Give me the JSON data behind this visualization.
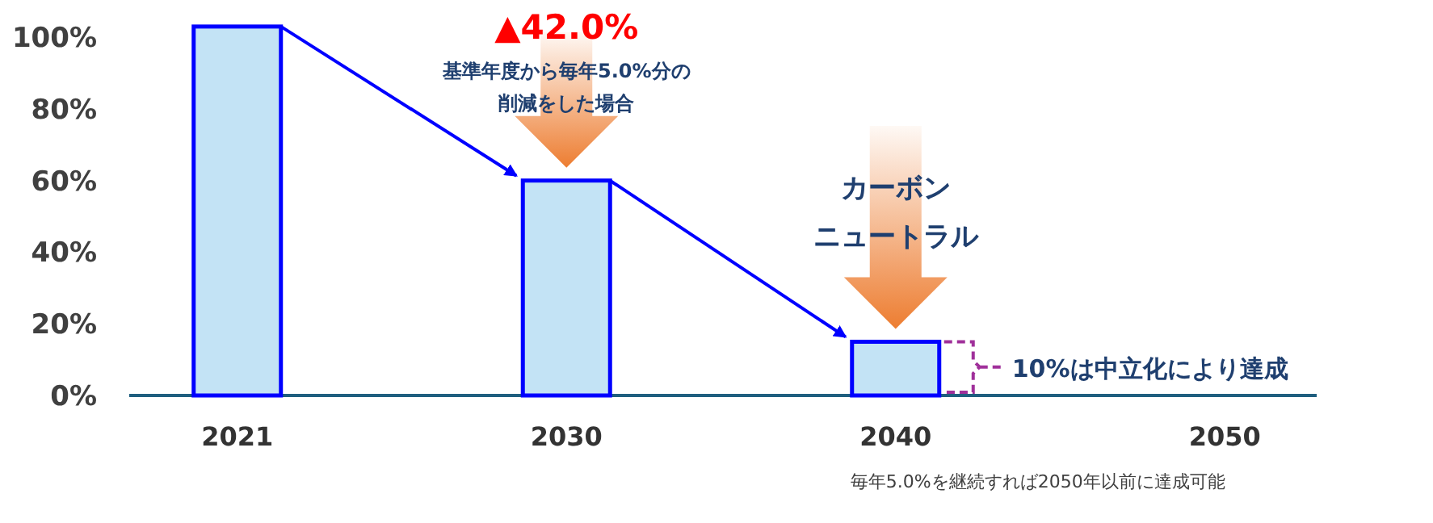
{
  "chart_data": {
    "type": "bar",
    "categories": [
      "2021",
      "2030",
      "2040",
      "2050"
    ],
    "values": [
      103,
      60,
      15,
      null
    ],
    "color": "#c3e3f5",
    "ylim": [
      0,
      105
    ],
    "yticks": [
      {
        "value": 0,
        "label": "0%"
      },
      {
        "value": 20,
        "label": "20%"
      },
      {
        "value": 40,
        "label": "40%"
      },
      {
        "value": 60,
        "label": "60%"
      },
      {
        "value": 80,
        "label": "80%"
      },
      {
        "value": 100,
        "label": "100%"
      }
    ],
    "grid": false,
    "annotations": [
      "▲42.0%",
      "基準年度から毎年5.0%分の",
      "削減をした場合",
      "カーボン",
      "ニュートラル",
      "10%は中立化により達成",
      "毎年5.0%を継続すれば2050年以前に達成可能"
    ]
  }
}
